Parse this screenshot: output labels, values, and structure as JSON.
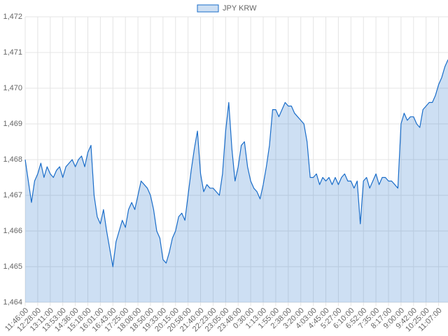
{
  "chart_data": {
    "type": "area",
    "categories": [
      "11:46:00",
      null,
      null,
      null,
      "12:28:00",
      null,
      null,
      null,
      "13:11:00",
      null,
      null,
      null,
      "13:53:00",
      null,
      null,
      null,
      "14:36:00",
      null,
      null,
      null,
      "15:18:00",
      null,
      null,
      null,
      "16:01:00",
      null,
      null,
      null,
      "16:43:00",
      null,
      null,
      null,
      "17:25:00",
      null,
      null,
      null,
      "18:08:00",
      null,
      null,
      null,
      "18:50:00",
      null,
      null,
      null,
      "19:33:00",
      null,
      null,
      null,
      "20:15:00",
      null,
      null,
      null,
      "20:58:00",
      null,
      null,
      null,
      "21:40:00",
      null,
      null,
      null,
      "22:23:00",
      null,
      null,
      null,
      "23:05:00",
      null,
      null,
      null,
      "23:48:00",
      null,
      null,
      null,
      "0:30:00",
      null,
      null,
      null,
      "1:13:00",
      null,
      null,
      null,
      "1:55:00",
      null,
      null,
      null,
      "2:38:00",
      null,
      null,
      null,
      "3:20:00",
      null,
      null,
      null,
      "4:03:00",
      null,
      null,
      null,
      "4:45:00",
      null,
      null,
      null,
      "5:27:00",
      null,
      null,
      null,
      "6:10:00",
      null,
      null,
      null,
      "6:52:00",
      null,
      null,
      null,
      "7:35:00",
      null,
      null,
      null,
      "8:17:00",
      null,
      null,
      null,
      "9:00:00",
      null,
      null,
      null,
      "9:42:00",
      null,
      null,
      null,
      "10:25:00",
      null,
      null,
      null,
      "11:07:00",
      null,
      null,
      null
    ],
    "series": [
      {
        "name": "JPY KRW",
        "color": "#1a6dc9",
        "values": [
          1468.0,
          1467.4,
          1466.8,
          1467.4,
          1467.6,
          1467.9,
          1467.5,
          1467.8,
          1467.6,
          1467.5,
          1467.7,
          1467.8,
          1467.5,
          1467.8,
          1467.9,
          1468.0,
          1467.8,
          1468.0,
          1468.1,
          1467.8,
          1468.2,
          1468.4,
          1467.0,
          1466.4,
          1466.2,
          1466.6,
          1466.0,
          1465.5,
          1465.0,
          1465.7,
          1466.0,
          1466.3,
          1466.1,
          1466.6,
          1466.8,
          1466.6,
          1467.0,
          1467.4,
          1467.3,
          1467.2,
          1467.0,
          1466.6,
          1466.0,
          1465.8,
          1465.2,
          1465.1,
          1465.4,
          1465.8,
          1466.0,
          1466.4,
          1466.5,
          1466.3,
          1467.0,
          1467.7,
          1468.3,
          1468.8,
          1467.6,
          1467.1,
          1467.3,
          1467.2,
          1467.2,
          1467.1,
          1467.0,
          1467.6,
          1468.8,
          1469.6,
          1468.3,
          1467.4,
          1467.8,
          1468.4,
          1468.5,
          1467.8,
          1467.4,
          1467.2,
          1467.1,
          1466.9,
          1467.3,
          1467.8,
          1468.4,
          1469.4,
          1469.4,
          1469.2,
          1469.4,
          1469.6,
          1469.5,
          1469.5,
          1469.3,
          1469.2,
          1469.1,
          1469.0,
          1468.5,
          1467.5,
          1467.5,
          1467.6,
          1467.3,
          1467.5,
          1467.4,
          1467.5,
          1467.3,
          1467.5,
          1467.3,
          1467.5,
          1467.6,
          1467.4,
          1467.4,
          1467.2,
          1467.4,
          1466.2,
          1467.4,
          1467.5,
          1467.2,
          1467.4,
          1467.6,
          1467.3,
          1467.5,
          1467.5,
          1467.4,
          1467.4,
          1467.3,
          1467.2,
          1469.0,
          1469.3,
          1469.1,
          1469.2,
          1469.2,
          1469.0,
          1468.9,
          1469.4,
          1469.5,
          1469.6,
          1469.6,
          1469.8,
          1470.1,
          1470.3,
          1470.6,
          1470.8
        ]
      }
    ],
    "ylim": [
      1464,
      1472
    ],
    "yticks": [
      {
        "value": 1464,
        "label": "1,464"
      },
      {
        "value": 1465,
        "label": "1,465"
      },
      {
        "value": 1466,
        "label": "1,466"
      },
      {
        "value": 1467,
        "label": "1,467"
      },
      {
        "value": 1468,
        "label": "1,468"
      },
      {
        "value": 1469,
        "label": "1,469"
      },
      {
        "value": 1470,
        "label": "1,470"
      },
      {
        "value": 1471,
        "label": "1,471"
      },
      {
        "value": 1472,
        "label": "1,472"
      }
    ],
    "grid": true,
    "legend": "top"
  }
}
